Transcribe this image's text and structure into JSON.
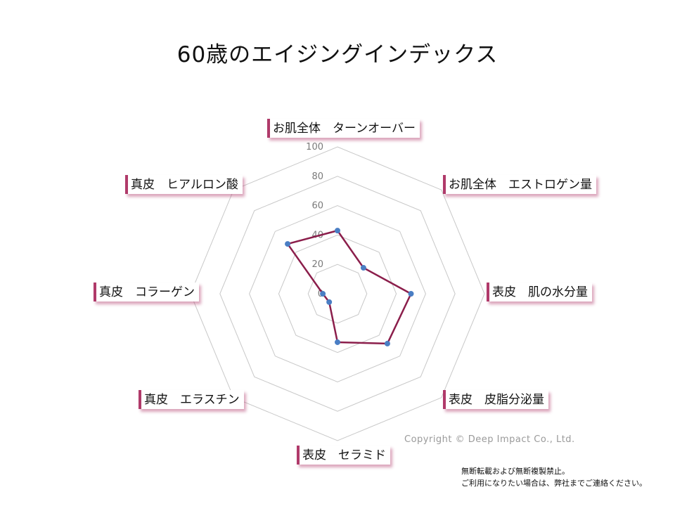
{
  "chart_data": {
    "type": "radar",
    "title": "60歳のエイジングインデックス",
    "axes": [
      "お肌全体　ターンオーバー",
      "お肌全体　エストロゲン量",
      "表皮　肌の水分量",
      "表皮　皮脂分泌量",
      "表皮　セラミド",
      "真皮　エラスチン",
      "真皮　コラーゲン",
      "真皮　ヒアルロン酸"
    ],
    "ticks": [
      "0",
      "20",
      "40",
      "60",
      "80",
      "100"
    ],
    "range": [
      0,
      100
    ],
    "series": [
      {
        "values": [
          43,
          25,
          50,
          48,
          33,
          8,
          10,
          48
        ],
        "color": "#8b1e4b",
        "marker_color": "#4a7ec4"
      }
    ],
    "grid_color": "#c8c8c8"
  },
  "copyright": "Copyright © Deep Impact Co., Ltd.",
  "notice": [
    "無断転載および無断複製禁止。",
    "ご利用になりたい場合は、弊社までご連絡ください。"
  ]
}
